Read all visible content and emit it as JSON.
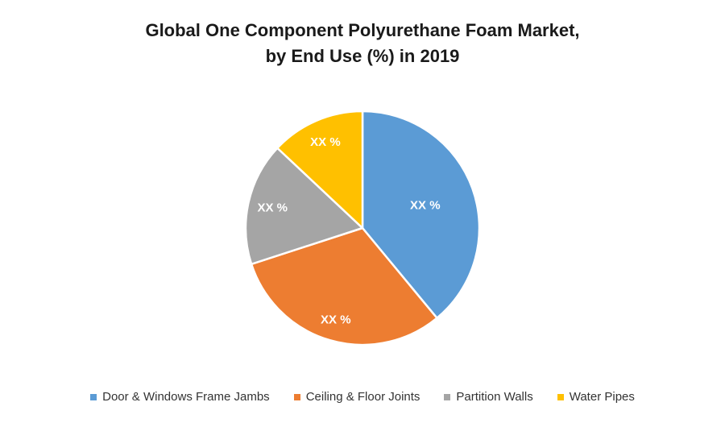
{
  "title": {
    "line1": "Global One Component Polyurethane Foam Market,",
    "line2": "by End Use (%) in 2019",
    "color": "#1a1a1a"
  },
  "chart_data": {
    "type": "pie",
    "title": "Global One Component Polyurethane Foam Market, by End Use (%) in 2019",
    "start_angle_deg": 0,
    "direction": "clockwise",
    "legend_position": "bottom",
    "data_label_color": "#ffffff",
    "slice_border_color": "#ffffff",
    "background_color": "#ffffff",
    "data_labels_masked_as": "XX %",
    "slices": [
      {
        "label": "Door & Windows Frame Jambs",
        "data_label": "XX %",
        "value_pct": 39,
        "color": "#5b9bd5"
      },
      {
        "label": "Ceiling & Floor Joints",
        "data_label": "XX %",
        "value_pct": 31,
        "color": "#ed7d31"
      },
      {
        "label": "Partition Walls",
        "data_label": "XX %",
        "value_pct": 17,
        "color": "#a5a5a5"
      },
      {
        "label": "Water Pipes",
        "data_label": "XX %",
        "value_pct": 13,
        "color": "#ffc000"
      }
    ],
    "legend_text_color": "#333333"
  }
}
